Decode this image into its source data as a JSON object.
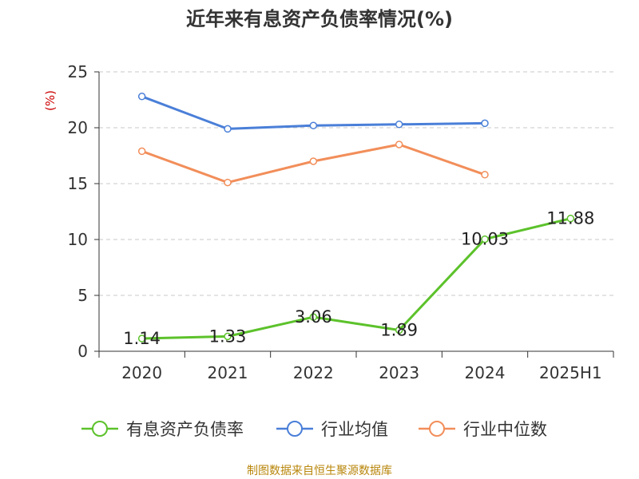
{
  "title": "近年来有息资产负债率情况(%)",
  "source": "制图数据来自恒生聚源数据库",
  "chart_data": {
    "type": "line",
    "title": "近年来有息资产负债率情况(%)",
    "ylabel": "(%)",
    "xlabel": "",
    "ylim": [
      0,
      25
    ],
    "yticks": [
      0,
      5,
      10,
      15,
      20,
      25
    ],
    "categories": [
      "2020",
      "2021",
      "2022",
      "2023",
      "2024",
      "2025H1"
    ],
    "grid": true,
    "legend_position": "bottom",
    "series": [
      {
        "name": "有息资产负债率",
        "color": "#5cc22b",
        "values": [
          1.14,
          1.33,
          3.06,
          1.89,
          10.03,
          11.88
        ],
        "labels": [
          "1.14",
          "1.33",
          "3.06",
          "1.89",
          "10.03",
          "11.88"
        ]
      },
      {
        "name": "行业均值",
        "color": "#4a7fd8",
        "values": [
          22.8,
          19.9,
          20.2,
          20.3,
          20.4,
          null
        ]
      },
      {
        "name": "行业中位数",
        "color": "#f28e5a",
        "values": [
          17.9,
          15.1,
          17.0,
          18.5,
          15.8,
          null
        ]
      }
    ]
  }
}
